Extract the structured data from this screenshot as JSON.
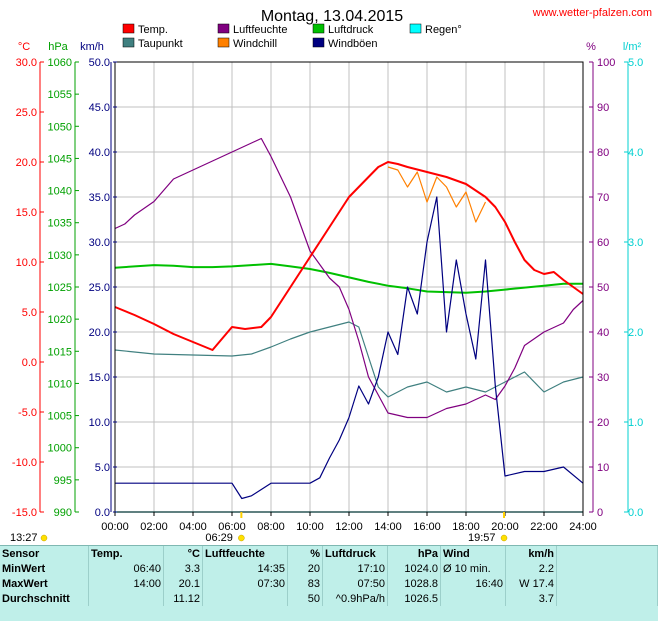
{
  "site": "www.wetter-pfalzen.com",
  "chart_data": {
    "type": "line",
    "title": "Montag, 13.04.2015",
    "x_ticks": [
      "00:00",
      "02:00",
      "04:00",
      "06:00",
      "08:00",
      "10:00",
      "12:00",
      "14:00",
      "16:00",
      "18:00",
      "20:00",
      "22:00",
      "24:00"
    ],
    "axes": {
      "temp": {
        "unit": "°C",
        "min": -15,
        "max": 30,
        "ticks": [
          "30.0",
          "25.0",
          "20.0",
          "15.0",
          "10.0",
          "5.0",
          "0.0",
          "-5.0",
          "-10.0",
          "-15.0"
        ],
        "color": "#ff0000"
      },
      "pressure": {
        "unit": "hPa",
        "min": 990,
        "max": 1060,
        "ticks": [
          "1060",
          "1055",
          "1050",
          "1045",
          "1040",
          "1035",
          "1030",
          "1025",
          "1020",
          "1015",
          "1010",
          "1005",
          "1000",
          "995",
          "990"
        ],
        "color": "#00a000"
      },
      "wind": {
        "unit": "km/h",
        "min": 0,
        "max": 50,
        "ticks": [
          "50.0",
          "45.0",
          "40.0",
          "35.0",
          "30.0",
          "25.0",
          "20.0",
          "15.0",
          "10.0",
          "5.0",
          "0.0"
        ],
        "color": "#000080"
      },
      "humidity": {
        "unit": "%",
        "min": 0,
        "max": 100,
        "ticks": [
          "100",
          "90",
          "80",
          "70",
          "60",
          "50",
          "40",
          "30",
          "20",
          "10",
          "0"
        ],
        "color": "#800080"
      },
      "rain": {
        "unit": "l/m²",
        "min": 0,
        "max": 5,
        "ticks": [
          "5.0",
          "4.0",
          "3.0",
          "2.0",
          "1.0",
          "0.0"
        ],
        "color": "#00d0d0"
      }
    },
    "legend": [
      {
        "name": "Temp.",
        "color": "#ff0000"
      },
      {
        "name": "Luftfeuchte",
        "color": "#800080"
      },
      {
        "name": "Luftdruck",
        "color": "#00c000"
      },
      {
        "name": "Regen°",
        "color": "#00ffff"
      },
      {
        "name": "Taupunkt",
        "color": "#408080"
      },
      {
        "name": "Windchill",
        "color": "#ff8000"
      },
      {
        "name": "Windböen",
        "color": "#000080"
      }
    ],
    "series": [
      {
        "name": "Temp.",
        "axis": "temp",
        "color": "#ff0000",
        "x": [
          0,
          1,
          2,
          3,
          4,
          5,
          6,
          6.67,
          7.5,
          8,
          9,
          10,
          11,
          12,
          13,
          13.5,
          14,
          14.5,
          15,
          16,
          17,
          18,
          19,
          19.5,
          20,
          20.5,
          21,
          21.5,
          22,
          22.5,
          23,
          24
        ],
        "y": [
          5.5,
          4.7,
          3.8,
          2.8,
          2.0,
          1.2,
          3.5,
          3.3,
          3.5,
          4.5,
          7.5,
          10.5,
          13.5,
          16.5,
          18.5,
          19.5,
          20.0,
          19.8,
          19.5,
          19.0,
          18.5,
          17.8,
          16.5,
          15.5,
          14.0,
          12.0,
          10.2,
          9.2,
          8.8,
          9.0,
          8.2,
          6.8
        ]
      },
      {
        "name": "Windchill",
        "axis": "temp",
        "color": "#ff8000",
        "x": [
          14,
          14.5,
          15,
          15.5,
          16,
          16.5,
          17,
          17.5,
          18,
          18.5,
          19
        ],
        "y": [
          19.5,
          19.2,
          17.5,
          19.0,
          16.0,
          18.5,
          17.5,
          15.5,
          17.0,
          14.0,
          16.0
        ]
      },
      {
        "name": "Luftfeuchte",
        "axis": "humidity",
        "color": "#800080",
        "x": [
          0,
          0.5,
          1,
          2,
          3,
          4,
          5,
          6,
          7,
          7.5,
          8,
          9,
          10,
          11,
          11.5,
          12,
          12.5,
          13,
          13.5,
          14,
          15,
          16,
          17,
          18,
          19,
          19.5,
          20,
          20.5,
          21,
          22,
          23,
          23.5,
          24
        ],
        "y": [
          63,
          64,
          66,
          69,
          74,
          76,
          78,
          80,
          82,
          83,
          79,
          70,
          58,
          52,
          50,
          45,
          38,
          30,
          26,
          22,
          21,
          21,
          23,
          24,
          26,
          25,
          28,
          32,
          37,
          40,
          42,
          45,
          47
        ]
      },
      {
        "name": "Taupunkt",
        "axis": "temp",
        "color": "#408080",
        "x": [
          0,
          2,
          4,
          6,
          7,
          8,
          9,
          10,
          11,
          12,
          12.5,
          13,
          13.5,
          14,
          15,
          16,
          17,
          18,
          19,
          20,
          21,
          22,
          23,
          24
        ],
        "y": [
          1.2,
          0.8,
          0.7,
          0.6,
          0.8,
          1.5,
          2.3,
          3.0,
          3.5,
          4.0,
          3.5,
          0.5,
          -2.5,
          -3.5,
          -2.5,
          -2.0,
          -3.0,
          -2.5,
          -3.0,
          -2.0,
          -1.0,
          -3.0,
          -2.0,
          -1.5
        ]
      },
      {
        "name": "Luftdruck",
        "axis": "pressure",
        "color": "#00c000",
        "x": [
          0,
          1,
          2,
          3,
          4,
          5,
          6,
          7,
          8,
          9,
          10,
          11,
          12,
          13,
          14,
          15,
          16,
          17,
          18,
          19,
          20,
          21,
          22,
          23,
          24
        ],
        "y": [
          1028.0,
          1028.2,
          1028.4,
          1028.3,
          1028.1,
          1028.1,
          1028.2,
          1028.4,
          1028.6,
          1028.2,
          1027.8,
          1027.2,
          1026.5,
          1025.8,
          1025.2,
          1024.8,
          1024.3,
          1024.2,
          1024.1,
          1024.3,
          1024.6,
          1024.9,
          1025.2,
          1025.5,
          1025.5
        ]
      },
      {
        "name": "Windböen",
        "axis": "wind",
        "color": "#000080",
        "x": [
          0,
          1,
          1.5,
          2,
          3,
          4,
          5,
          6,
          6.5,
          7,
          7.5,
          8,
          9,
          10,
          10.5,
          11,
          11.5,
          12,
          12.5,
          13,
          13.5,
          14,
          14.5,
          15,
          15.5,
          16,
          16.5,
          17,
          17.5,
          18,
          18.5,
          19,
          19.5,
          20,
          21,
          22,
          23,
          24
        ],
        "y": [
          3.2,
          3.2,
          3.2,
          3.2,
          3.2,
          3.2,
          3.2,
          3.2,
          1.5,
          1.8,
          2.5,
          3.2,
          3.2,
          3.2,
          3.8,
          6.0,
          8.0,
          10.5,
          14.0,
          12.0,
          15.0,
          20.0,
          17.5,
          25.0,
          22.0,
          30.0,
          35.0,
          20.0,
          28.0,
          22.0,
          17.0,
          28.0,
          14.0,
          4.0,
          4.5,
          4.5,
          5.0,
          3.2
        ]
      },
      {
        "name": "Regen°",
        "axis": "rain",
        "color": "#00ffff",
        "x": [
          0,
          24
        ],
        "y": [
          0,
          0
        ]
      }
    ],
    "markers": [
      {
        "label": "13:27",
        "x": 0
      },
      {
        "label": "06:29",
        "x": 6.48
      },
      {
        "label": "19:57",
        "x": 19.95
      }
    ],
    "grid": true
  },
  "stats": {
    "headers": [
      "Sensor",
      "Temp.",
      "°C",
      "Luftfeuchte",
      "%",
      "Luftdruck",
      "hPa",
      "Wind",
      "km/h"
    ],
    "rows": [
      [
        "MinWert",
        "06:40",
        "3.3",
        "14:35",
        "20",
        "17:10",
        "1024.0",
        "Ø 10 min.",
        "2.2"
      ],
      [
        "MaxWert",
        "14:00",
        "20.1",
        "07:30",
        "83",
        "07:50",
        "1028.8",
        "16:40",
        "W 17.4"
      ],
      [
        "Durchschnitt",
        "",
        "11.12",
        "",
        "50",
        "^0.9hPa/h",
        "1026.5",
        "",
        "3.7"
      ]
    ]
  }
}
